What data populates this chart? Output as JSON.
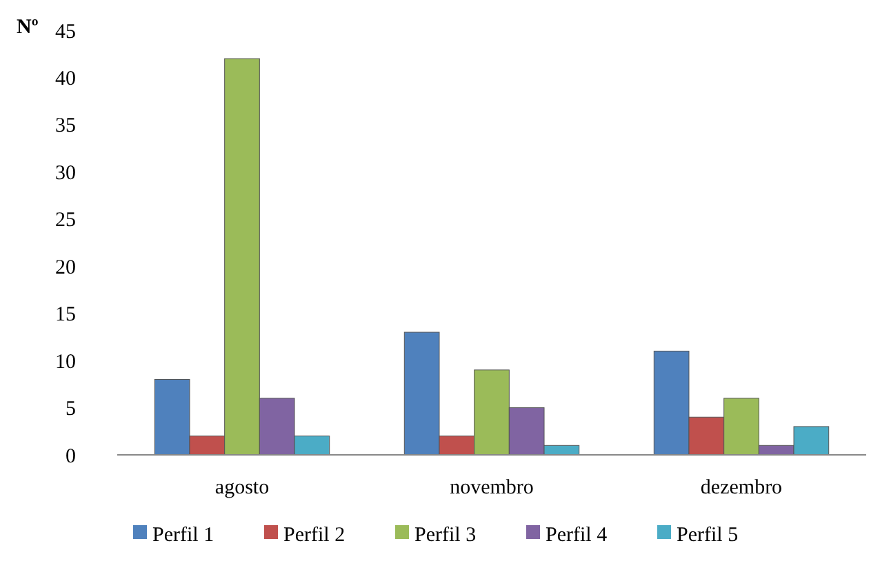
{
  "chart_data": {
    "type": "bar",
    "ylabel": "Nº",
    "categories": [
      "agosto",
      "novembro",
      "dezembro"
    ],
    "series": [
      {
        "name": "Perfil 1",
        "color": "#4f81bd",
        "values": [
          8,
          13,
          11
        ]
      },
      {
        "name": "Perfil 2",
        "color": "#c0504d",
        "values": [
          2,
          2,
          4
        ]
      },
      {
        "name": "Perfil 3",
        "color": "#9bbb59",
        "values": [
          42,
          9,
          6
        ]
      },
      {
        "name": "Perfil 4",
        "color": "#8064a2",
        "values": [
          6,
          5,
          1
        ]
      },
      {
        "name": "Perfil 5",
        "color": "#4bacc6",
        "values": [
          2,
          1,
          3
        ]
      }
    ],
    "ylim": [
      0,
      45
    ],
    "yticks": [
      0,
      5,
      10,
      15,
      20,
      25,
      30,
      35,
      40,
      45
    ],
    "grid": false,
    "legend": "bottom"
  }
}
